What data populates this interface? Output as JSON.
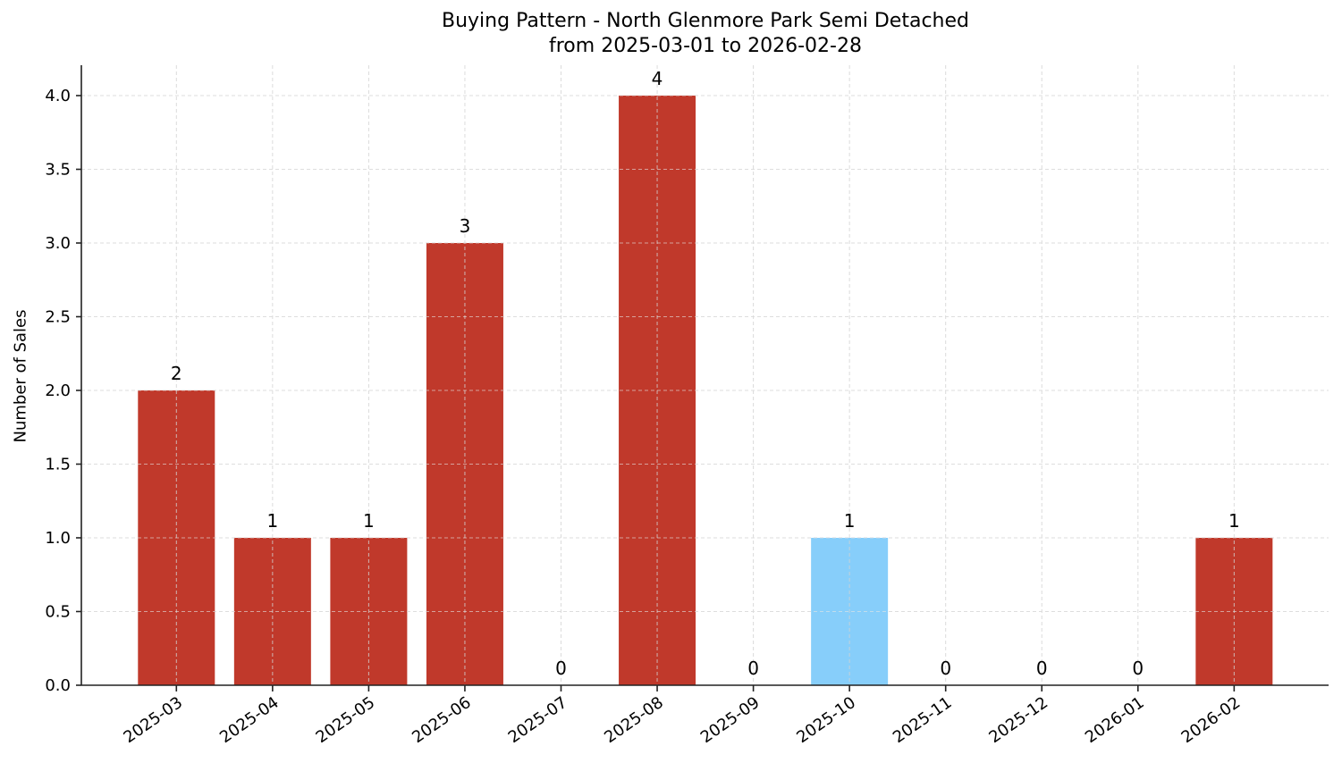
{
  "chart_data": {
    "type": "bar",
    "title": "Buying Pattern - North Glenmore Park Semi Detached",
    "subtitle": "from 2025-03-01 to 2026-02-28",
    "xlabel": "",
    "ylabel": "Number of Sales",
    "categories": [
      "2025-03",
      "2025-04",
      "2025-05",
      "2025-06",
      "2025-07",
      "2025-08",
      "2025-09",
      "2025-10",
      "2025-11",
      "2025-12",
      "2026-01",
      "2026-02"
    ],
    "values": [
      2,
      1,
      1,
      3,
      0,
      4,
      0,
      1,
      0,
      0,
      0,
      1
    ],
    "bar_colors": [
      "#c0392b",
      "#c0392b",
      "#c0392b",
      "#c0392b",
      "#c0392b",
      "#c0392b",
      "#c0392b",
      "#87cefa",
      "#c0392b",
      "#c0392b",
      "#c0392b",
      "#c0392b"
    ],
    "data_labels": [
      "2",
      "1",
      "1",
      "3",
      "0",
      "4",
      "0",
      "1",
      "0",
      "0",
      "0",
      "1"
    ],
    "ylim": [
      0,
      4.2
    ],
    "yticks": [
      "0.0",
      "0.5",
      "1.0",
      "1.5",
      "2.0",
      "2.5",
      "3.0",
      "3.5",
      "4.0"
    ],
    "grid": true,
    "legend": null
  },
  "colors": {
    "bar_default": "#c0392b",
    "bar_highlight": "#87cefa",
    "grid": "#d3d3d3",
    "axis": "#222222"
  }
}
